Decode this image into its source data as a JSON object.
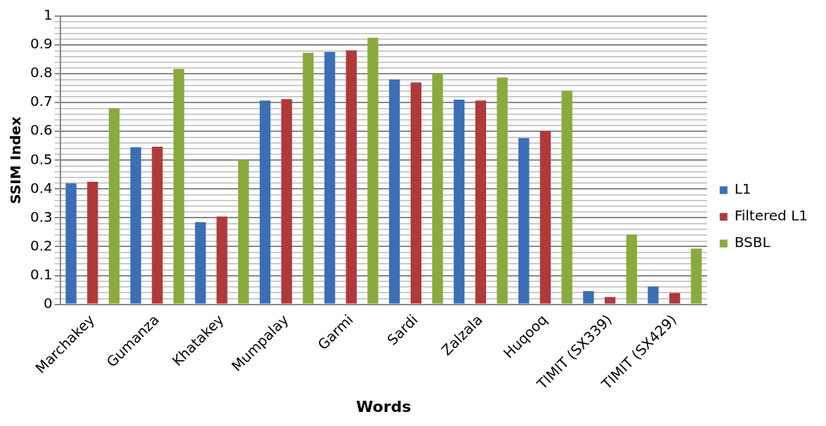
{
  "chart_data": {
    "type": "bar",
    "xlabel": "Words",
    "ylabel": "SSIM Index",
    "categories": [
      "Marchakey",
      "Gumanza",
      "Khatakey",
      "Mumpalay",
      "Garmi",
      "Sardi",
      "Zalzala",
      "Huqooq",
      "TIMIT (SX339)",
      "TIMIT (SX429)"
    ],
    "series": [
      {
        "name": "L1",
        "color": "#3a6fb5",
        "values": [
          0.42,
          0.545,
          0.285,
          0.707,
          0.876,
          0.78,
          0.71,
          0.577,
          0.046,
          0.062
        ]
      },
      {
        "name": "Filtered L1",
        "color": "#b0393a",
        "values": [
          0.425,
          0.547,
          0.305,
          0.712,
          0.881,
          0.77,
          0.707,
          0.601,
          0.025,
          0.039
        ]
      },
      {
        "name": "BSBL",
        "color": "#8aaa3e",
        "values": [
          0.68,
          0.817,
          0.5,
          0.873,
          0.925,
          0.8,
          0.787,
          0.741,
          0.242,
          0.193
        ]
      }
    ],
    "ylim": [
      0,
      1
    ],
    "yticks": [
      0,
      {
        "value": 0.02,
        "label": null
      },
      {
        "value": 0.04,
        "label": null
      },
      {
        "value": 0.06,
        "label": null
      },
      {
        "value": 0.08,
        "label": null
      },
      0.1,
      {
        "value": 0.12,
        "label": null
      },
      {
        "value": 0.14,
        "label": null
      },
      {
        "value": 0.16,
        "label": null
      },
      {
        "value": 0.18,
        "label": null
      },
      0.2,
      {
        "value": 0.22,
        "label": null
      },
      {
        "value": 0.24,
        "label": null
      },
      {
        "value": 0.26,
        "label": null
      },
      {
        "value": 0.28,
        "label": null
      },
      0.3,
      {
        "value": 0.32,
        "label": null
      },
      {
        "value": 0.34,
        "label": null
      },
      {
        "value": 0.36,
        "label": null
      },
      {
        "value": 0.38,
        "label": null
      },
      0.4,
      {
        "value": 0.42,
        "label": null
      },
      {
        "value": 0.44,
        "label": null
      },
      {
        "value": 0.46,
        "label": null
      },
      {
        "value": 0.48,
        "label": null
      },
      0.5,
      {
        "value": 0.52,
        "label": null
      },
      {
        "value": 0.54,
        "label": null
      },
      {
        "value": 0.56,
        "label": null
      },
      {
        "value": 0.58,
        "label": null
      },
      0.6,
      {
        "value": 0.62,
        "label": null
      },
      {
        "value": 0.64,
        "label": null
      },
      {
        "value": 0.66,
        "label": null
      },
      {
        "value": 0.68,
        "label": null
      },
      0.7,
      {
        "value": 0.72,
        "label": null
      },
      {
        "value": 0.74,
        "label": null
      },
      {
        "value": 0.76,
        "label": null
      },
      {
        "value": 0.78,
        "label": null
      },
      0.8,
      {
        "value": 0.82,
        "label": null
      },
      {
        "value": 0.84,
        "label": null
      },
      {
        "value": 0.86,
        "label": null
      },
      {
        "value": 0.88,
        "label": null
      },
      0.9,
      {
        "value": 0.92,
        "label": null
      },
      {
        "value": 0.94,
        "label": null
      },
      {
        "value": 0.96,
        "label": null
      },
      {
        "value": 0.98,
        "label": null
      },
      1
    ],
    "grid": "y",
    "legend": "right"
  }
}
